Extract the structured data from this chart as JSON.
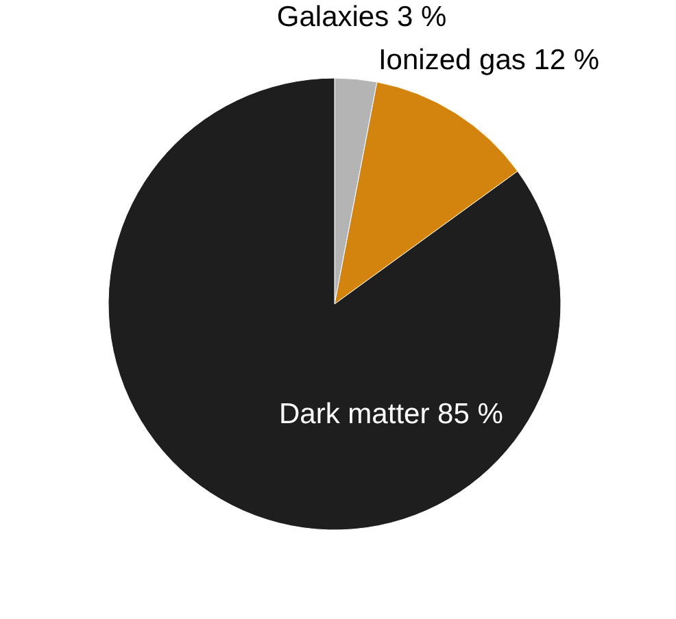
{
  "chart_data": {
    "type": "pie",
    "categories": [
      "Galaxies",
      "Ionized gas",
      "Dark matter"
    ],
    "values": [
      3,
      12,
      85
    ],
    "value_labels": [
      "3 %",
      "12 %",
      "85 %"
    ],
    "colors": [
      "#b4b4b4",
      "#d2840e",
      "#1e1e1e"
    ]
  }
}
